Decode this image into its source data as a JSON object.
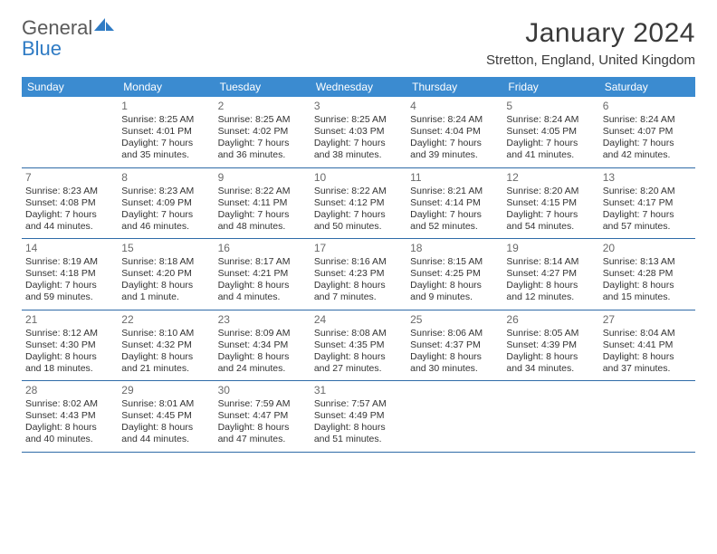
{
  "logo": {
    "text_general": "General",
    "text_blue": "Blue",
    "icon_color": "#2f7bc4"
  },
  "header": {
    "month_title": "January 2024",
    "location": "Stretton, England, United Kingdom"
  },
  "colors": {
    "header_bar": "#3b8bd0",
    "header_text": "#ffffff",
    "week_border": "#2f6ba8",
    "day_num": "#6a6a6a",
    "body_text": "#333333"
  },
  "weekdays": [
    "Sunday",
    "Monday",
    "Tuesday",
    "Wednesday",
    "Thursday",
    "Friday",
    "Saturday"
  ],
  "weeks": [
    [
      null,
      {
        "n": "1",
        "sr": "Sunrise: 8:25 AM",
        "ss": "Sunset: 4:01 PM",
        "d1": "Daylight: 7 hours",
        "d2": "and 35 minutes."
      },
      {
        "n": "2",
        "sr": "Sunrise: 8:25 AM",
        "ss": "Sunset: 4:02 PM",
        "d1": "Daylight: 7 hours",
        "d2": "and 36 minutes."
      },
      {
        "n": "3",
        "sr": "Sunrise: 8:25 AM",
        "ss": "Sunset: 4:03 PM",
        "d1": "Daylight: 7 hours",
        "d2": "and 38 minutes."
      },
      {
        "n": "4",
        "sr": "Sunrise: 8:24 AM",
        "ss": "Sunset: 4:04 PM",
        "d1": "Daylight: 7 hours",
        "d2": "and 39 minutes."
      },
      {
        "n": "5",
        "sr": "Sunrise: 8:24 AM",
        "ss": "Sunset: 4:05 PM",
        "d1": "Daylight: 7 hours",
        "d2": "and 41 minutes."
      },
      {
        "n": "6",
        "sr": "Sunrise: 8:24 AM",
        "ss": "Sunset: 4:07 PM",
        "d1": "Daylight: 7 hours",
        "d2": "and 42 minutes."
      }
    ],
    [
      {
        "n": "7",
        "sr": "Sunrise: 8:23 AM",
        "ss": "Sunset: 4:08 PM",
        "d1": "Daylight: 7 hours",
        "d2": "and 44 minutes."
      },
      {
        "n": "8",
        "sr": "Sunrise: 8:23 AM",
        "ss": "Sunset: 4:09 PM",
        "d1": "Daylight: 7 hours",
        "d2": "and 46 minutes."
      },
      {
        "n": "9",
        "sr": "Sunrise: 8:22 AM",
        "ss": "Sunset: 4:11 PM",
        "d1": "Daylight: 7 hours",
        "d2": "and 48 minutes."
      },
      {
        "n": "10",
        "sr": "Sunrise: 8:22 AM",
        "ss": "Sunset: 4:12 PM",
        "d1": "Daylight: 7 hours",
        "d2": "and 50 minutes."
      },
      {
        "n": "11",
        "sr": "Sunrise: 8:21 AM",
        "ss": "Sunset: 4:14 PM",
        "d1": "Daylight: 7 hours",
        "d2": "and 52 minutes."
      },
      {
        "n": "12",
        "sr": "Sunrise: 8:20 AM",
        "ss": "Sunset: 4:15 PM",
        "d1": "Daylight: 7 hours",
        "d2": "and 54 minutes."
      },
      {
        "n": "13",
        "sr": "Sunrise: 8:20 AM",
        "ss": "Sunset: 4:17 PM",
        "d1": "Daylight: 7 hours",
        "d2": "and 57 minutes."
      }
    ],
    [
      {
        "n": "14",
        "sr": "Sunrise: 8:19 AM",
        "ss": "Sunset: 4:18 PM",
        "d1": "Daylight: 7 hours",
        "d2": "and 59 minutes."
      },
      {
        "n": "15",
        "sr": "Sunrise: 8:18 AM",
        "ss": "Sunset: 4:20 PM",
        "d1": "Daylight: 8 hours",
        "d2": "and 1 minute."
      },
      {
        "n": "16",
        "sr": "Sunrise: 8:17 AM",
        "ss": "Sunset: 4:21 PM",
        "d1": "Daylight: 8 hours",
        "d2": "and 4 minutes."
      },
      {
        "n": "17",
        "sr": "Sunrise: 8:16 AM",
        "ss": "Sunset: 4:23 PM",
        "d1": "Daylight: 8 hours",
        "d2": "and 7 minutes."
      },
      {
        "n": "18",
        "sr": "Sunrise: 8:15 AM",
        "ss": "Sunset: 4:25 PM",
        "d1": "Daylight: 8 hours",
        "d2": "and 9 minutes."
      },
      {
        "n": "19",
        "sr": "Sunrise: 8:14 AM",
        "ss": "Sunset: 4:27 PM",
        "d1": "Daylight: 8 hours",
        "d2": "and 12 minutes."
      },
      {
        "n": "20",
        "sr": "Sunrise: 8:13 AM",
        "ss": "Sunset: 4:28 PM",
        "d1": "Daylight: 8 hours",
        "d2": "and 15 minutes."
      }
    ],
    [
      {
        "n": "21",
        "sr": "Sunrise: 8:12 AM",
        "ss": "Sunset: 4:30 PM",
        "d1": "Daylight: 8 hours",
        "d2": "and 18 minutes."
      },
      {
        "n": "22",
        "sr": "Sunrise: 8:10 AM",
        "ss": "Sunset: 4:32 PM",
        "d1": "Daylight: 8 hours",
        "d2": "and 21 minutes."
      },
      {
        "n": "23",
        "sr": "Sunrise: 8:09 AM",
        "ss": "Sunset: 4:34 PM",
        "d1": "Daylight: 8 hours",
        "d2": "and 24 minutes."
      },
      {
        "n": "24",
        "sr": "Sunrise: 8:08 AM",
        "ss": "Sunset: 4:35 PM",
        "d1": "Daylight: 8 hours",
        "d2": "and 27 minutes."
      },
      {
        "n": "25",
        "sr": "Sunrise: 8:06 AM",
        "ss": "Sunset: 4:37 PM",
        "d1": "Daylight: 8 hours",
        "d2": "and 30 minutes."
      },
      {
        "n": "26",
        "sr": "Sunrise: 8:05 AM",
        "ss": "Sunset: 4:39 PM",
        "d1": "Daylight: 8 hours",
        "d2": "and 34 minutes."
      },
      {
        "n": "27",
        "sr": "Sunrise: 8:04 AM",
        "ss": "Sunset: 4:41 PM",
        "d1": "Daylight: 8 hours",
        "d2": "and 37 minutes."
      }
    ],
    [
      {
        "n": "28",
        "sr": "Sunrise: 8:02 AM",
        "ss": "Sunset: 4:43 PM",
        "d1": "Daylight: 8 hours",
        "d2": "and 40 minutes."
      },
      {
        "n": "29",
        "sr": "Sunrise: 8:01 AM",
        "ss": "Sunset: 4:45 PM",
        "d1": "Daylight: 8 hours",
        "d2": "and 44 minutes."
      },
      {
        "n": "30",
        "sr": "Sunrise: 7:59 AM",
        "ss": "Sunset: 4:47 PM",
        "d1": "Daylight: 8 hours",
        "d2": "and 47 minutes."
      },
      {
        "n": "31",
        "sr": "Sunrise: 7:57 AM",
        "ss": "Sunset: 4:49 PM",
        "d1": "Daylight: 8 hours",
        "d2": "and 51 minutes."
      },
      null,
      null,
      null
    ]
  ]
}
